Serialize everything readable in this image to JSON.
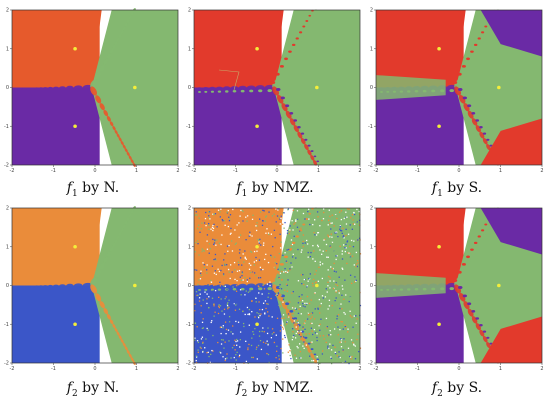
{
  "panels": [
    {
      "caption": {
        "fn": "f",
        "sub": "1",
        "method": "by N."
      },
      "colors": {
        "a": "#e65a2c",
        "b": "#6a2aa5",
        "c": "#84b870"
      },
      "style": "clean"
    },
    {
      "caption": {
        "fn": "f",
        "sub": "1",
        "method": "by NMZ."
      },
      "colors": {
        "a": "#e23a2c",
        "b": "#6a2aa5",
        "c": "#84b870"
      },
      "style": "bulbs"
    },
    {
      "caption": {
        "fn": "f",
        "sub": "1",
        "method": "by S."
      },
      "colors": {
        "a": "#e23a2c",
        "b": "#6a2aa5",
        "c": "#84b870"
      },
      "style": "swirl"
    },
    {
      "caption": {
        "fn": "f",
        "sub": "2",
        "method": "by N."
      },
      "colors": {
        "a": "#ea8c3a",
        "b": "#3b56c8",
        "c": "#84b870"
      },
      "style": "clean"
    },
    {
      "caption": {
        "fn": "f",
        "sub": "2",
        "method": "by NMZ."
      },
      "colors": {
        "a": "#ea8c3a",
        "b": "#3b56c8",
        "c": "#84b870"
      },
      "style": "noisy"
    },
    {
      "caption": {
        "fn": "f",
        "sub": "2",
        "method": "by S."
      },
      "colors": {
        "a": "#e23a2c",
        "b": "#6a2aa5",
        "c": "#84b870"
      },
      "style": "swirl"
    }
  ],
  "ticks": {
    "x": [
      "-2",
      "-1",
      "0",
      "1",
      "2"
    ],
    "y": [
      "2",
      "1",
      "0",
      "-1",
      "-2"
    ]
  },
  "root_color": "#f4ee3a"
}
